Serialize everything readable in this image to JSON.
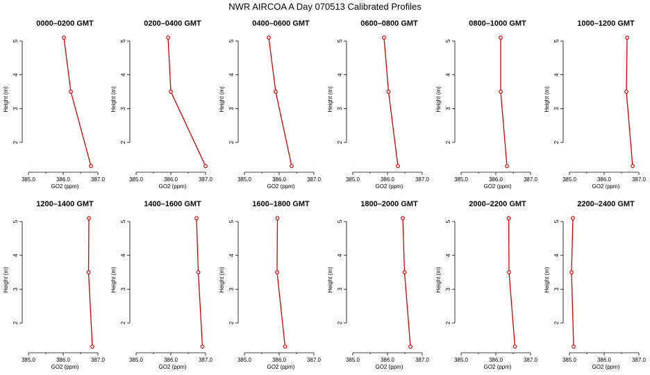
{
  "chart_data": {
    "type": "line",
    "title": "NWR AIRCOA A  Day 070513  Calibrated Profiles",
    "xlabel": "GO2 (ppm)",
    "ylabel": "Height (m)",
    "xlim": [
      384.9,
      387.2
    ],
    "ylim": [
      1.2,
      5.35
    ],
    "x_ticks": [
      385,
      386,
      387
    ],
    "x_tick_labels": [
      "385.0",
      "386.0",
      "387.0"
    ],
    "y_ticks": [
      2,
      3,
      4,
      5
    ],
    "y_tick_labels": [
      "2",
      "3",
      "4",
      "5"
    ],
    "heights": [
      5.1,
      3.5,
      1.3
    ],
    "line_color": "#d00000",
    "panels": [
      {
        "label": "0000–0200 GMT",
        "values": [
          386.02,
          386.22,
          386.8
        ]
      },
      {
        "label": "0200–0400 GMT",
        "values": [
          385.92,
          386.0,
          387.0
        ]
      },
      {
        "label": "0400–0600 GMT",
        "values": [
          385.7,
          385.9,
          386.36
        ]
      },
      {
        "label": "0600–0800 GMT",
        "values": [
          385.9,
          386.03,
          386.3
        ]
      },
      {
        "label": "0800–1000 GMT",
        "values": [
          386.14,
          386.14,
          386.32
        ]
      },
      {
        "label": "1000–1200 GMT",
        "values": [
          386.66,
          386.64,
          386.82
        ]
      },
      {
        "label": "1200–1400 GMT",
        "values": [
          386.74,
          386.73,
          386.84
        ]
      },
      {
        "label": "1400–1600 GMT",
        "values": [
          386.74,
          386.79,
          386.91
        ]
      },
      {
        "label": "1600–1800 GMT",
        "values": [
          385.95,
          385.94,
          386.17
        ]
      },
      {
        "label": "1800–2000 GMT",
        "values": [
          386.44,
          386.49,
          386.66
        ]
      },
      {
        "label": "2000–2200 GMT",
        "values": [
          386.37,
          386.38,
          386.55
        ]
      },
      {
        "label": "2200–2400 GMT",
        "values": [
          385.1,
          385.06,
          385.12
        ]
      }
    ]
  }
}
